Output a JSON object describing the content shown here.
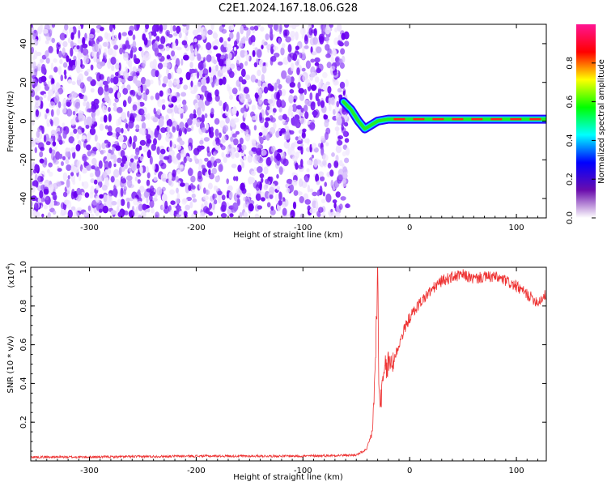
{
  "title": "C2E1.2024.167.18.06.G28",
  "chart_data": [
    {
      "type": "heatmap",
      "xlabel": "Height of straight line (km)",
      "ylabel": "Frequency (Hz)",
      "xlim": [
        -355,
        128
      ],
      "ylim": [
        -50,
        50
      ],
      "xticks": [
        -300,
        -200,
        -100,
        0,
        100
      ],
      "yticks": [
        -40,
        -20,
        0,
        20,
        40
      ],
      "colorbar": {
        "label": "Normalized spectral amplitude",
        "range": [
          0,
          1
        ],
        "ticks": [
          0.0,
          0.2,
          0.4,
          0.6,
          0.8
        ],
        "tick_labels": [
          "0.0",
          "0.2",
          "0.4",
          "0.6",
          "0.8"
        ],
        "colors": [
          "#ffffff",
          "#6a0dad",
          "#0000ff",
          "#00ffff",
          "#00ff00",
          "#ffff00",
          "#ff0000",
          "#ff1493"
        ]
      },
      "noise_region_x": [
        -355,
        -58
      ],
      "signal_track": {
        "x": [
          -62,
          -55,
          -48,
          -42,
          -36,
          -30,
          -20,
          -10,
          0,
          20,
          40,
          60,
          80,
          100,
          128
        ],
        "y": [
          10,
          6,
          0,
          -4,
          -2,
          0,
          1,
          1,
          1,
          1,
          1,
          1,
          1,
          1,
          1
        ]
      }
    },
    {
      "type": "line",
      "xlabel": "Height of straight line (km)",
      "ylabel": "SNR (10 * v/v)",
      "y_multiplier": "(x10",
      "y_multiplier_exp": "4",
      "y_multiplier_close": ")",
      "xlim": [
        -355,
        128
      ],
      "ylim": [
        0,
        1.0
      ],
      "xticks": [
        -300,
        -200,
        -100,
        0,
        100
      ],
      "yticks": [
        0.2,
        0.4,
        0.6,
        0.8,
        1.0
      ],
      "line_color": "#ee3333",
      "series": [
        {
          "x": [
            -355,
            -300,
            -200,
            -100,
            -50,
            -40,
            -35,
            -32,
            -30,
            -29,
            -28,
            -26,
            -24,
            -20,
            -15,
            -10,
            -5,
            0,
            10,
            20,
            30,
            40,
            50,
            60,
            70,
            80,
            90,
            100,
            110,
            120,
            128
          ],
          "y": [
            0.02,
            0.02,
            0.025,
            0.025,
            0.03,
            0.06,
            0.15,
            0.5,
            1.0,
            0.4,
            0.3,
            0.35,
            0.45,
            0.5,
            0.52,
            0.6,
            0.68,
            0.74,
            0.82,
            0.88,
            0.93,
            0.95,
            0.96,
            0.94,
            0.95,
            0.95,
            0.93,
            0.9,
            0.86,
            0.82,
            0.86
          ]
        }
      ]
    }
  ]
}
